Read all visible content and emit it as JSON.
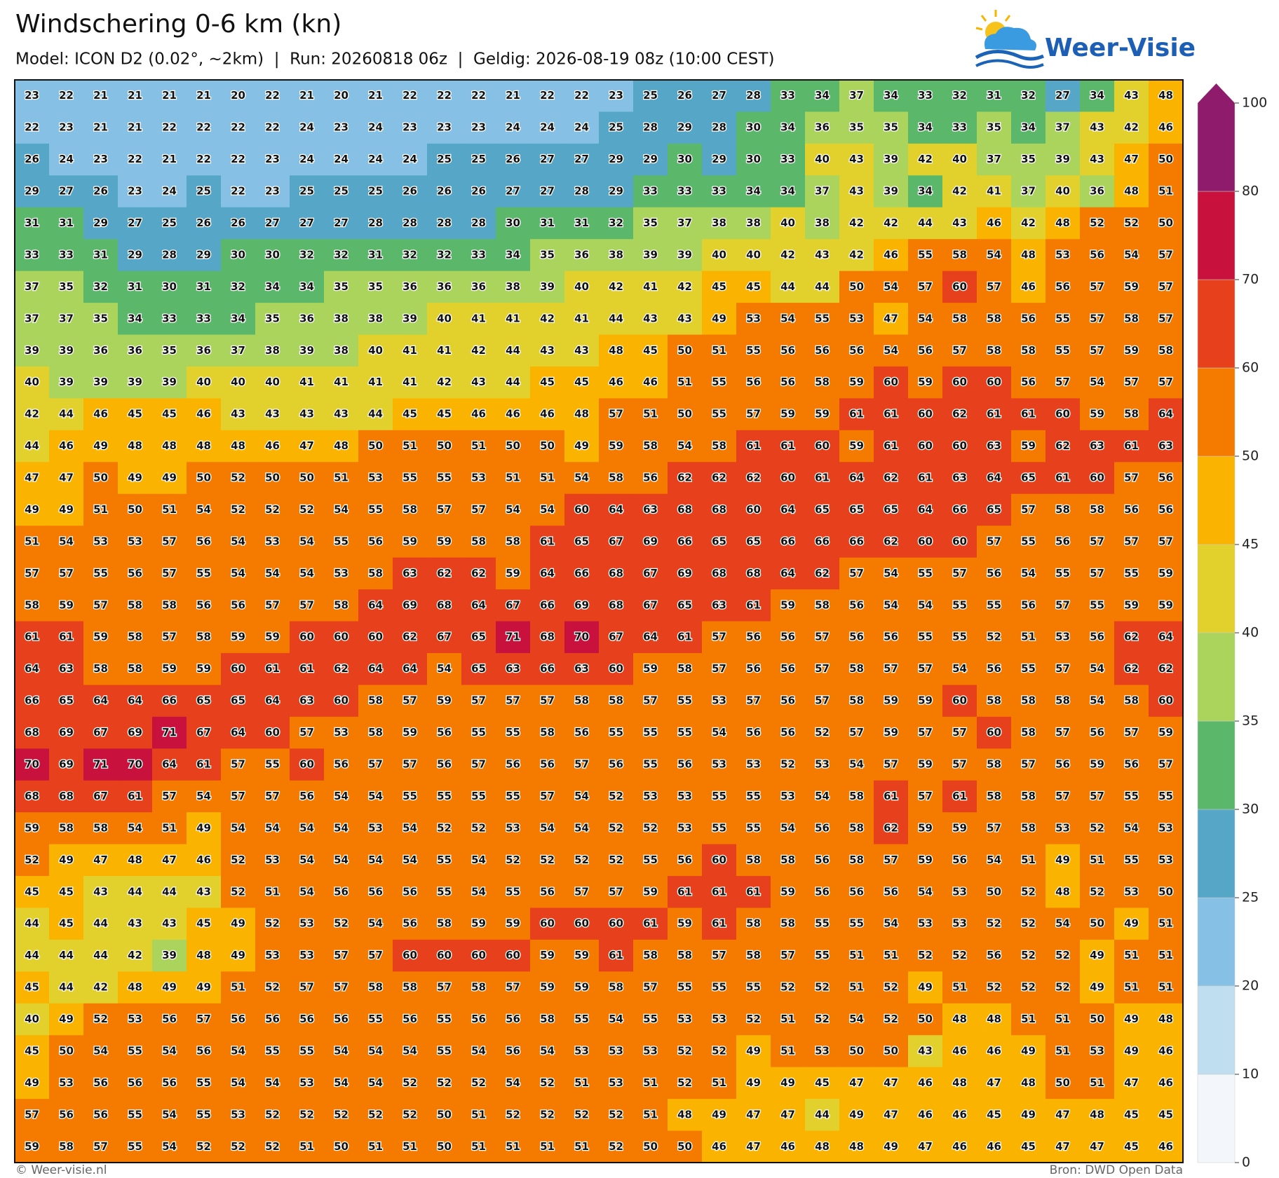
{
  "header": {
    "title": "Windschering 0-6 km (kn)",
    "subtitle": "Model: ICON D2 (0.02°, ~2km)  |  Run: 20260818 06z  |  Geldig: 2026-08-19 08z (10:00 CEST)",
    "logo": "Weer-Visie"
  },
  "colorbar": {
    "ticks": [
      0,
      10,
      20,
      25,
      30,
      35,
      40,
      45,
      50,
      60,
      70,
      80,
      100
    ],
    "colors": [
      "#f3f6fa",
      "#bfdff0",
      "#86c1e5",
      "#56a6c8",
      "#5bb86b",
      "#aad45b",
      "#e2d12d",
      "#fab400",
      "#f57a00",
      "#e6411c",
      "#c8113c",
      "#8e1b6b"
    ]
  },
  "grid": {
    "rows": [
      [
        23,
        22,
        21,
        21,
        21,
        21,
        20,
        22,
        21,
        20,
        21,
        22,
        22,
        22,
        21,
        22,
        22,
        23,
        25,
        26,
        27,
        28,
        33,
        34,
        37,
        34,
        33,
        32,
        31,
        32,
        27,
        34,
        43,
        48
      ],
      [
        22,
        23,
        21,
        21,
        22,
        22,
        22,
        22,
        24,
        23,
        24,
        23,
        23,
        23,
        24,
        24,
        24,
        25,
        28,
        29,
        28,
        30,
        34,
        36,
        35,
        35,
        34,
        33,
        35,
        34,
        37,
        43,
        42,
        46
      ],
      [
        26,
        24,
        23,
        22,
        21,
        22,
        22,
        23,
        24,
        24,
        24,
        24,
        25,
        25,
        26,
        27,
        27,
        29,
        29,
        30,
        29,
        30,
        33,
        40,
        43,
        39,
        42,
        40,
        37,
        35,
        39,
        43,
        47,
        50
      ],
      [
        29,
        27,
        26,
        23,
        24,
        25,
        22,
        23,
        25,
        25,
        25,
        26,
        26,
        26,
        27,
        27,
        28,
        29,
        33,
        33,
        33,
        34,
        34,
        37,
        43,
        39,
        34,
        42,
        41,
        37,
        40,
        36,
        48,
        51
      ],
      [
        31,
        31,
        29,
        27,
        25,
        26,
        26,
        27,
        27,
        27,
        28,
        28,
        28,
        28,
        30,
        31,
        31,
        32,
        35,
        37,
        38,
        38,
        40,
        38,
        42,
        42,
        44,
        43,
        46,
        42,
        48,
        52,
        52,
        50
      ],
      [
        33,
        33,
        31,
        29,
        28,
        29,
        30,
        30,
        32,
        32,
        31,
        32,
        32,
        33,
        34,
        35,
        36,
        38,
        39,
        39,
        40,
        40,
        42,
        43,
        42,
        46,
        55,
        58,
        54,
        48,
        53,
        56,
        54,
        57
      ],
      [
        37,
        35,
        32,
        31,
        30,
        31,
        32,
        34,
        34,
        35,
        35,
        36,
        36,
        36,
        38,
        39,
        40,
        42,
        41,
        42,
        45,
        45,
        44,
        44,
        50,
        54,
        57,
        60,
        57,
        46,
        56,
        57,
        59,
        57
      ],
      [
        37,
        37,
        35,
        34,
        33,
        33,
        34,
        35,
        36,
        38,
        38,
        39,
        40,
        41,
        41,
        42,
        41,
        44,
        43,
        43,
        49,
        53,
        54,
        55,
        53,
        47,
        54,
        58,
        58,
        56,
        55,
        57,
        58,
        57
      ],
      [
        39,
        39,
        36,
        36,
        35,
        36,
        37,
        38,
        39,
        38,
        40,
        41,
        41,
        42,
        44,
        43,
        43,
        48,
        45,
        50,
        51,
        55,
        56,
        56,
        56,
        54,
        56,
        57,
        58,
        58,
        55,
        57,
        59,
        58
      ],
      [
        40,
        39,
        39,
        39,
        39,
        40,
        40,
        40,
        41,
        41,
        41,
        41,
        42,
        43,
        44,
        45,
        45,
        46,
        46,
        51,
        55,
        56,
        56,
        58,
        59,
        60,
        59,
        60,
        60,
        56,
        57,
        54,
        57,
        57
      ],
      [
        42,
        44,
        46,
        45,
        45,
        46,
        43,
        43,
        43,
        43,
        44,
        45,
        45,
        46,
        46,
        46,
        48,
        57,
        51,
        50,
        55,
        57,
        59,
        59,
        61,
        61,
        60,
        62,
        61,
        61,
        60,
        59,
        58,
        64
      ],
      [
        44,
        46,
        49,
        48,
        48,
        48,
        48,
        46,
        47,
        48,
        50,
        51,
        50,
        51,
        50,
        50,
        49,
        59,
        58,
        54,
        58,
        61,
        61,
        60,
        59,
        61,
        60,
        60,
        63,
        59,
        62,
        63,
        61,
        63
      ],
      [
        47,
        47,
        50,
        49,
        49,
        50,
        52,
        50,
        50,
        51,
        53,
        55,
        55,
        53,
        51,
        51,
        54,
        58,
        56,
        62,
        62,
        62,
        60,
        61,
        64,
        62,
        61,
        63,
        64,
        65,
        61,
        60,
        57,
        56
      ],
      [
        49,
        49,
        51,
        50,
        51,
        54,
        52,
        52,
        52,
        54,
        55,
        58,
        57,
        57,
        54,
        54,
        60,
        64,
        63,
        68,
        68,
        60,
        64,
        65,
        65,
        65,
        64,
        66,
        65,
        57,
        58,
        58,
        56,
        56
      ],
      [
        51,
        54,
        53,
        53,
        57,
        56,
        54,
        53,
        54,
        55,
        56,
        59,
        59,
        58,
        58,
        61,
        65,
        67,
        69,
        66,
        65,
        65,
        66,
        66,
        66,
        62,
        60,
        60,
        57,
        55,
        56,
        57,
        57,
        57
      ],
      [
        57,
        57,
        55,
        56,
        57,
        55,
        54,
        54,
        54,
        53,
        58,
        63,
        62,
        62,
        59,
        64,
        66,
        68,
        67,
        69,
        68,
        68,
        64,
        62,
        57,
        54,
        55,
        57,
        56,
        54,
        55,
        57,
        55,
        59
      ],
      [
        58,
        59,
        57,
        58,
        58,
        56,
        56,
        57,
        57,
        58,
        64,
        69,
        68,
        64,
        67,
        66,
        69,
        68,
        67,
        65,
        63,
        61,
        59,
        58,
        56,
        54,
        54,
        55,
        55,
        56,
        57,
        55,
        59,
        59
      ],
      [
        61,
        61,
        59,
        58,
        57,
        58,
        59,
        59,
        60,
        60,
        60,
        62,
        67,
        65,
        71,
        68,
        70,
        67,
        64,
        61,
        57,
        56,
        56,
        57,
        56,
        56,
        55,
        55,
        52,
        51,
        53,
        56,
        62,
        64
      ],
      [
        64,
        63,
        58,
        58,
        59,
        59,
        60,
        61,
        61,
        62,
        64,
        64,
        54,
        65,
        63,
        66,
        63,
        60,
        59,
        58,
        57,
        56,
        56,
        57,
        58,
        57,
        57,
        54,
        56,
        55,
        57,
        54,
        62,
        62
      ],
      [
        66,
        65,
        64,
        64,
        66,
        65,
        65,
        64,
        63,
        60,
        58,
        57,
        59,
        57,
        57,
        57,
        58,
        58,
        57,
        55,
        53,
        57,
        56,
        57,
        58,
        59,
        59,
        60,
        58,
        58,
        58,
        54,
        58,
        60
      ],
      [
        68,
        69,
        67,
        69,
        71,
        67,
        64,
        60,
        57,
        53,
        58,
        59,
        56,
        55,
        55,
        58,
        56,
        55,
        55,
        55,
        54,
        56,
        56,
        52,
        57,
        59,
        57,
        57,
        60,
        58,
        57,
        56,
        57,
        59
      ],
      [
        70,
        69,
        71,
        70,
        64,
        61,
        57,
        55,
        60,
        56,
        57,
        57,
        56,
        57,
        56,
        56,
        57,
        56,
        55,
        56,
        53,
        53,
        52,
        53,
        54,
        57,
        59,
        57,
        58,
        57,
        56,
        59,
        56,
        57
      ],
      [
        68,
        68,
        67,
        61,
        57,
        54,
        57,
        57,
        56,
        54,
        54,
        55,
        55,
        55,
        55,
        57,
        54,
        52,
        53,
        53,
        55,
        55,
        53,
        54,
        58,
        61,
        57,
        61,
        58,
        58,
        57,
        57,
        55,
        55
      ],
      [
        59,
        58,
        58,
        54,
        51,
        49,
        54,
        54,
        54,
        54,
        53,
        54,
        52,
        52,
        53,
        54,
        54,
        52,
        52,
        53,
        55,
        55,
        54,
        56,
        58,
        62,
        59,
        59,
        57,
        58,
        53,
        52,
        54,
        53
      ],
      [
        52,
        49,
        47,
        48,
        47,
        46,
        52,
        53,
        54,
        54,
        54,
        54,
        55,
        54,
        52,
        52,
        52,
        52,
        55,
        56,
        60,
        58,
        58,
        56,
        58,
        57,
        59,
        56,
        54,
        51,
        49,
        51,
        55,
        53
      ],
      [
        45,
        45,
        43,
        44,
        44,
        43,
        52,
        51,
        54,
        56,
        56,
        56,
        55,
        54,
        55,
        56,
        57,
        57,
        59,
        61,
        61,
        61,
        59,
        56,
        56,
        56,
        54,
        53,
        50,
        52,
        48,
        52,
        53,
        50
      ],
      [
        44,
        45,
        44,
        43,
        43,
        45,
        49,
        52,
        53,
        52,
        54,
        56,
        58,
        59,
        59,
        60,
        60,
        60,
        61,
        59,
        61,
        58,
        58,
        55,
        55,
        54,
        53,
        53,
        52,
        52,
        54,
        50,
        49,
        51
      ],
      [
        44,
        44,
        44,
        42,
        39,
        48,
        49,
        53,
        53,
        57,
        57,
        60,
        60,
        60,
        60,
        59,
        59,
        61,
        58,
        58,
        57,
        58,
        57,
        55,
        51,
        51,
        52,
        52,
        56,
        52,
        52,
        49,
        51,
        51
      ],
      [
        45,
        44,
        42,
        48,
        49,
        49,
        51,
        52,
        57,
        57,
        58,
        58,
        57,
        58,
        57,
        59,
        59,
        58,
        57,
        55,
        55,
        55,
        52,
        52,
        51,
        52,
        49,
        51,
        52,
        52,
        52,
        49,
        51,
        51
      ],
      [
        40,
        49,
        52,
        53,
        56,
        57,
        56,
        56,
        56,
        56,
        55,
        56,
        55,
        56,
        56,
        58,
        55,
        54,
        55,
        53,
        53,
        52,
        51,
        52,
        54,
        52,
        50,
        48,
        48,
        51,
        51,
        50,
        49,
        48
      ],
      [
        45,
        50,
        54,
        55,
        54,
        56,
        54,
        55,
        55,
        54,
        54,
        54,
        55,
        54,
        56,
        54,
        53,
        53,
        53,
        52,
        52,
        49,
        51,
        53,
        50,
        50,
        43,
        46,
        46,
        49,
        51,
        53,
        49,
        46
      ],
      [
        49,
        53,
        56,
        56,
        56,
        55,
        54,
        54,
        53,
        54,
        54,
        52,
        52,
        52,
        54,
        52,
        51,
        53,
        51,
        52,
        51,
        49,
        49,
        45,
        47,
        47,
        46,
        48,
        47,
        48,
        50,
        51,
        47,
        46
      ],
      [
        57,
        56,
        56,
        55,
        54,
        55,
        53,
        52,
        52,
        52,
        52,
        52,
        50,
        51,
        52,
        52,
        52,
        52,
        51,
        48,
        49,
        47,
        47,
        44,
        49,
        47,
        46,
        46,
        45,
        49,
        47,
        48,
        45,
        45
      ],
      [
        59,
        58,
        57,
        55,
        54,
        52,
        52,
        52,
        51,
        50,
        51,
        51,
        50,
        51,
        51,
        51,
        51,
        52,
        50,
        50,
        46,
        47,
        46,
        48,
        48,
        49,
        47,
        46,
        46,
        45,
        47,
        47,
        45,
        46
      ]
    ]
  },
  "footer": {
    "left": "© Weer-visie.nl",
    "right": "Bron: DWD Open Data"
  }
}
